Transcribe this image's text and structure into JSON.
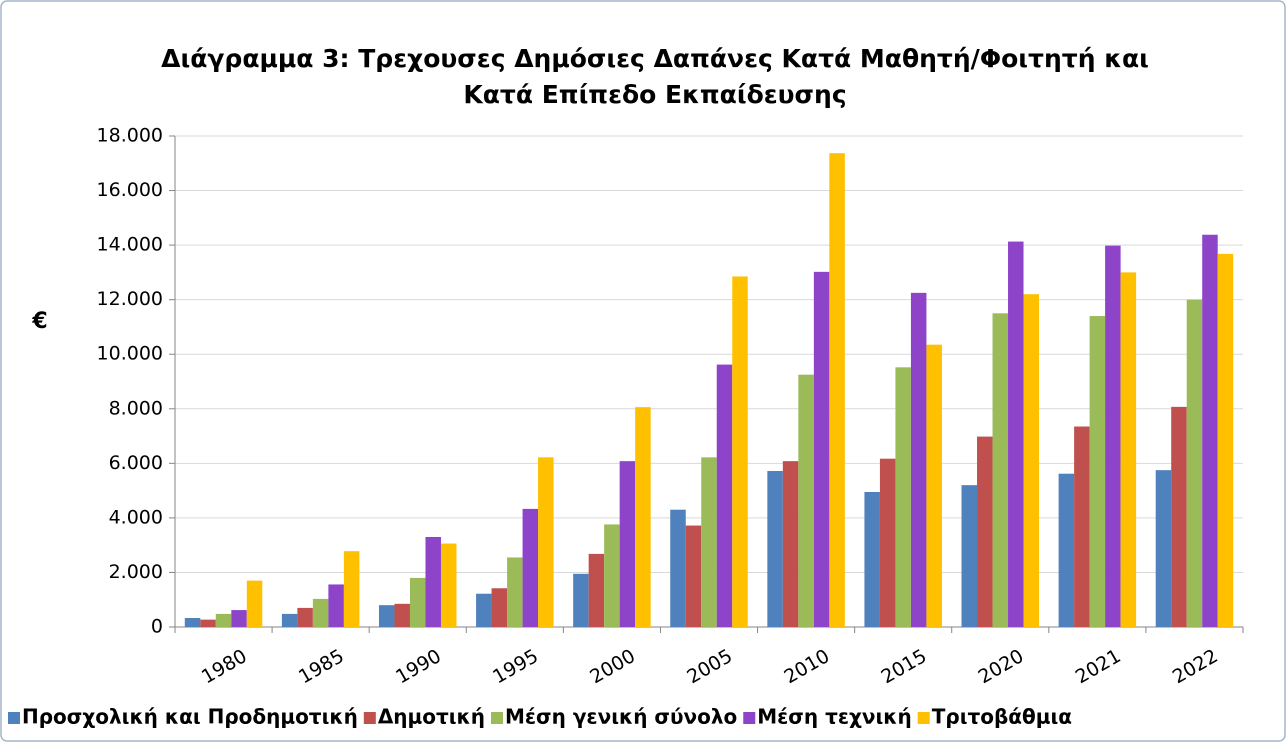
{
  "chart_data": {
    "type": "bar",
    "title": [
      "Διάγραμμα 3: Τρεχουσες Δημόσιες Δαπάνες Κατά Μαθητή/Φοιτητή και",
      "Κατά Επίπεδο Εκπαίδευσης"
    ],
    "y_label": "€",
    "categories": [
      "1980",
      "1985",
      "1990",
      "1995",
      "2000",
      "2005",
      "2010",
      "2015",
      "2020",
      "2021",
      "2022"
    ],
    "series": [
      {
        "name": "Προσχολική και Προδημοτική",
        "color": "#4f81bd",
        "values": [
          330,
          480,
          800,
          1220,
          1950,
          4300,
          5720,
          4950,
          5200,
          5620,
          5750
        ]
      },
      {
        "name": "Δημοτική",
        "color": "#c0504d",
        "values": [
          270,
          700,
          850,
          1420,
          2680,
          3720,
          6080,
          6170,
          6980,
          7350,
          8070
        ]
      },
      {
        "name": "Μέση γενική σύνολο",
        "color": "#9bbb59",
        "values": [
          480,
          1030,
          1800,
          2550,
          3760,
          6220,
          9250,
          9520,
          11500,
          11400,
          12000
        ]
      },
      {
        "name": "Μέση τεχνική",
        "color": "#8e44c9",
        "values": [
          620,
          1560,
          3300,
          4330,
          6080,
          9620,
          13020,
          12250,
          14130,
          13980,
          14380
        ]
      },
      {
        "name": "Τριτοβάθμια",
        "color": "#ffc000",
        "values": [
          1700,
          2780,
          3060,
          6220,
          8060,
          12850,
          17370,
          10350,
          12200,
          13000,
          13680
        ]
      }
    ],
    "ylim": [
      0,
      18000
    ],
    "yticks": [
      0,
      {
        "value": 2000,
        "label": "2.000"
      },
      {
        "value": 4000,
        "label": "4.000"
      },
      {
        "value": 6000,
        "label": "6.000"
      },
      {
        "value": 8000,
        "label": "8.000"
      },
      {
        "value": 10000,
        "label": "10.000"
      },
      {
        "value": 12000,
        "label": "12.000"
      },
      {
        "value": 14000,
        "label": "14.000"
      },
      {
        "value": 16000,
        "label": "16.000"
      },
      {
        "value": 18000,
        "label": "18.000"
      }
    ],
    "grid": true,
    "legend": "bottom"
  }
}
